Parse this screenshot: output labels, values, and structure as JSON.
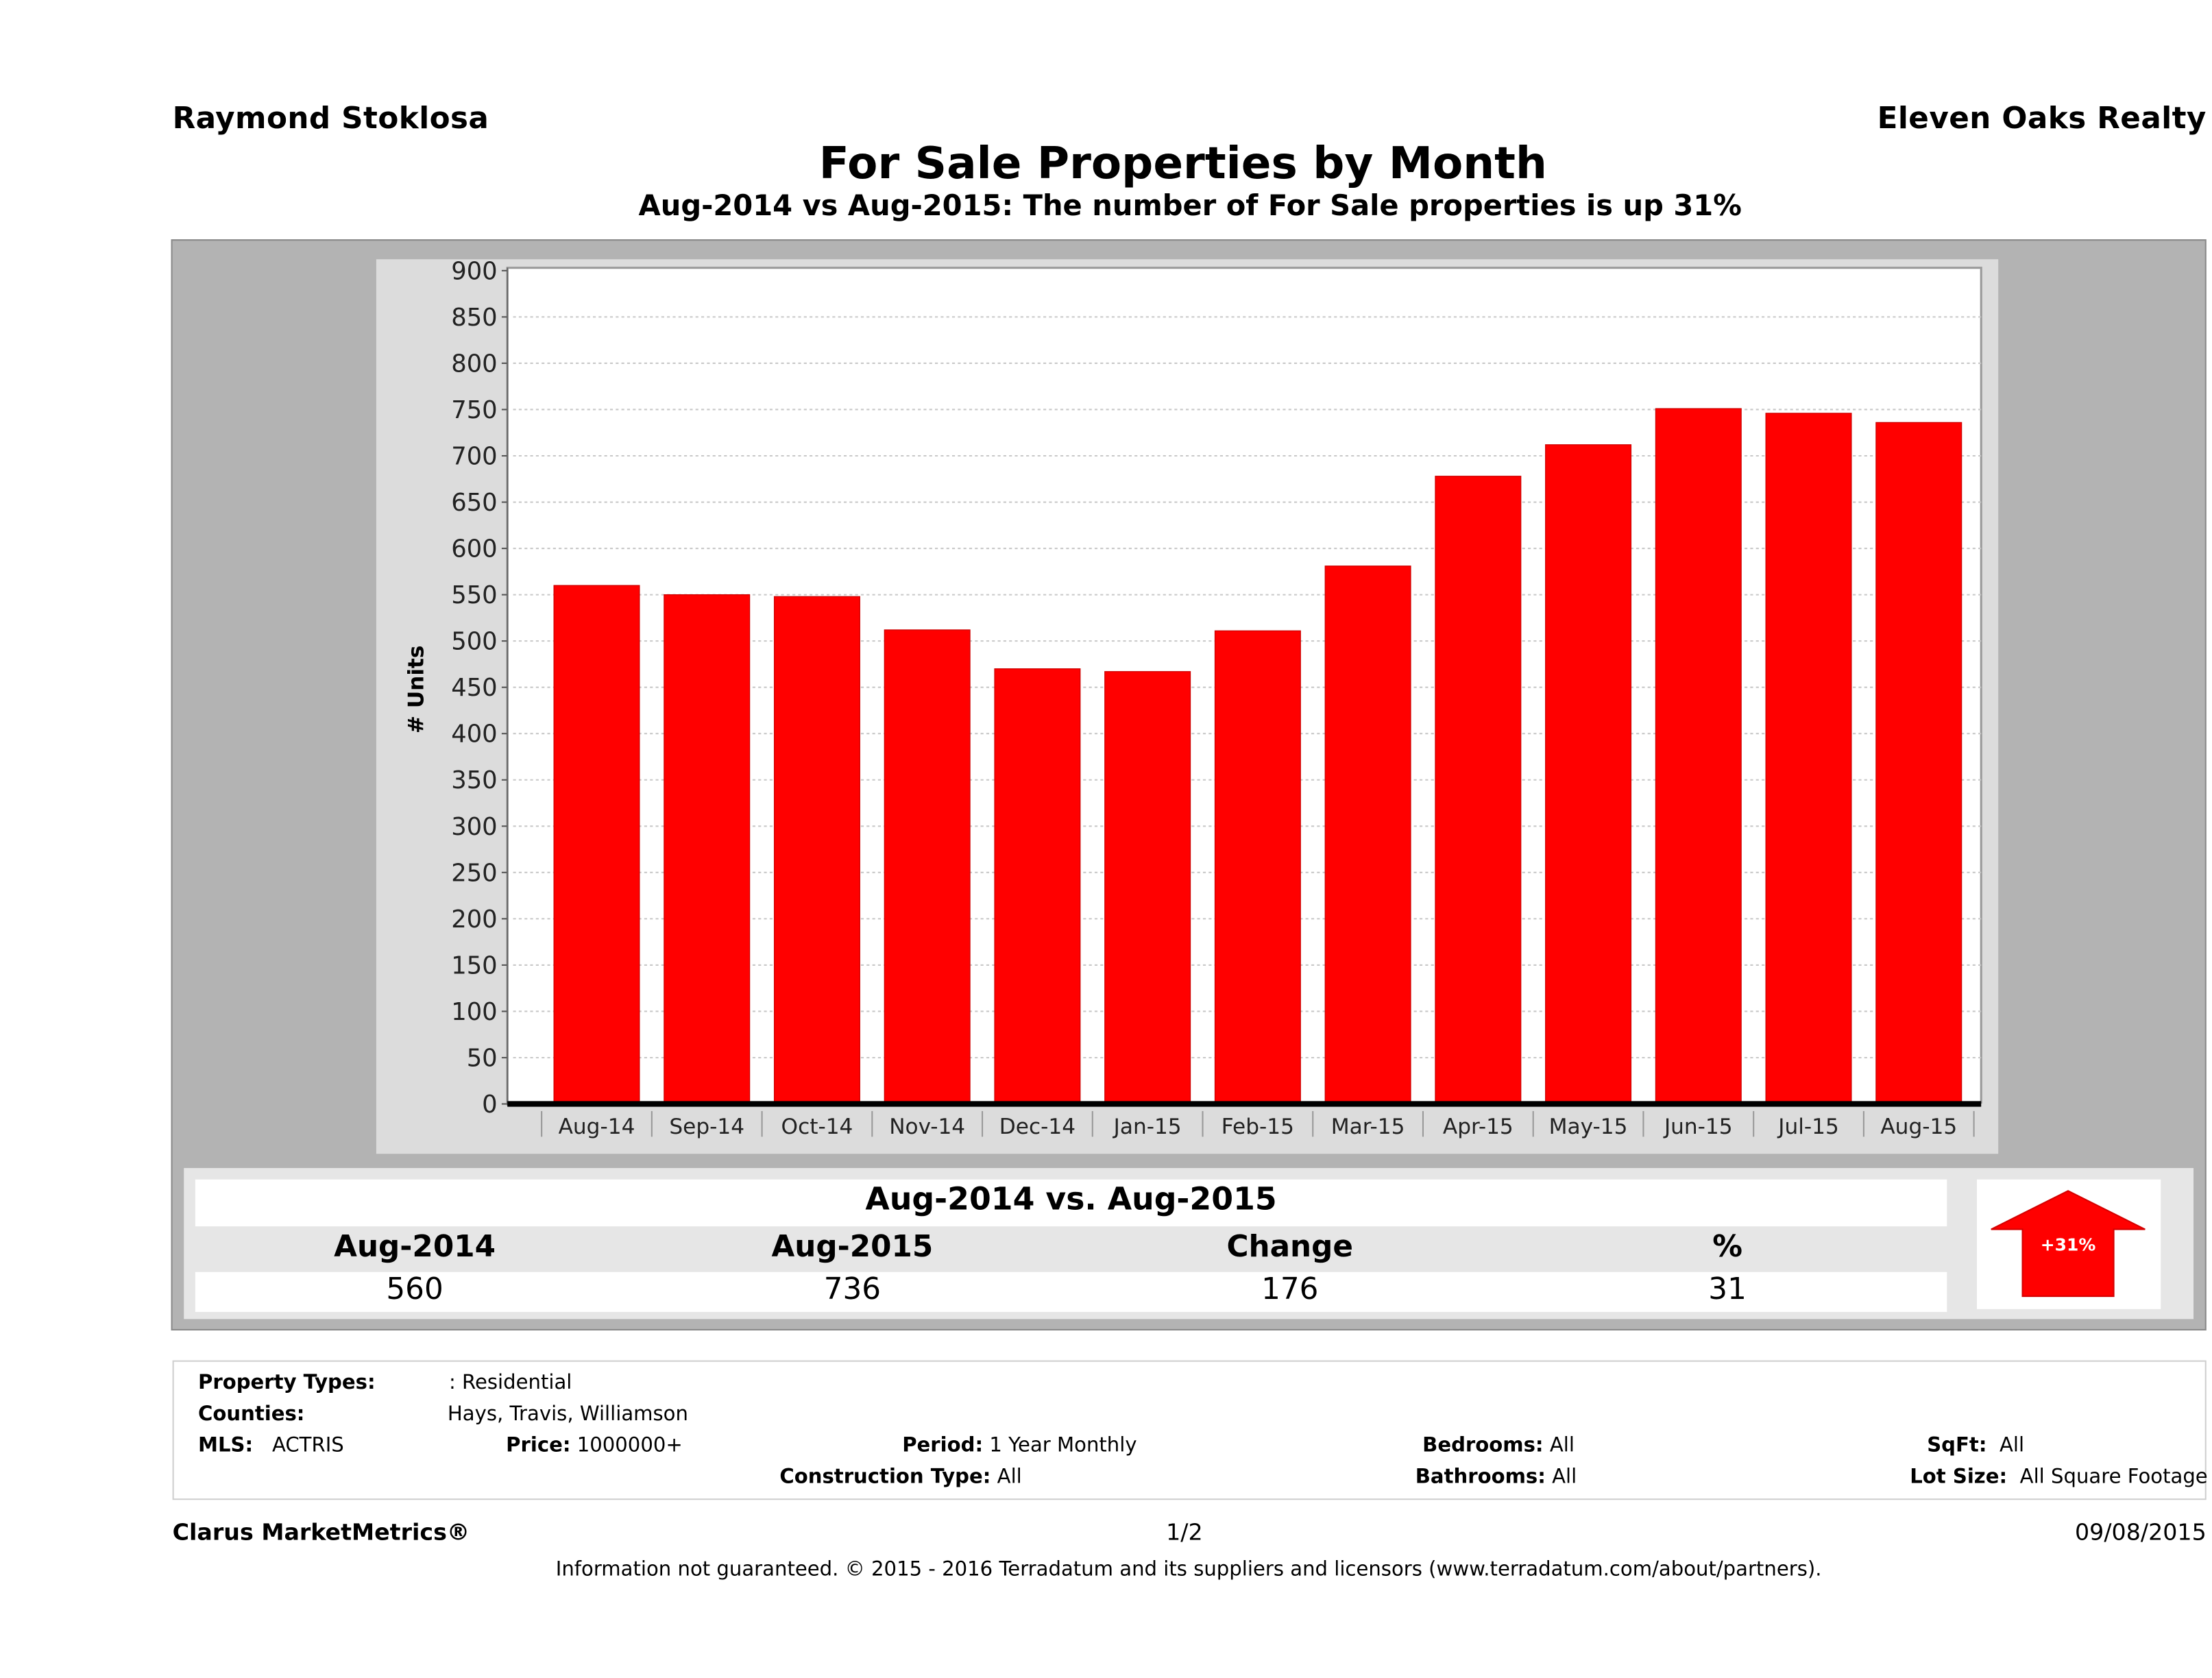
{
  "header": {
    "agent_name": "Raymond Stoklosa",
    "brokerage": "Eleven Oaks Realty",
    "title": "For Sale Properties by Month",
    "subtitle": "Aug-2014 vs Aug-2015: The number of For Sale  properties is up 31%"
  },
  "colors": {
    "bar": "#ff0000",
    "panel_bg": "#b3b3b3",
    "chart_bg": "#dcdcdc",
    "arrow": "#ff0000"
  },
  "chart_data": {
    "type": "bar",
    "title": "For Sale Properties by Month",
    "xlabel": "",
    "ylabel": "# Units",
    "ylim": [
      0,
      900
    ],
    "yticks": [
      0,
      50,
      100,
      150,
      200,
      250,
      300,
      350,
      400,
      450,
      500,
      550,
      600,
      650,
      700,
      750,
      800,
      850,
      900
    ],
    "grid": true,
    "legend": "none",
    "categories": [
      "Aug-14",
      "Sep-14",
      "Oct-14",
      "Nov-14",
      "Dec-14",
      "Jan-15",
      "Feb-15",
      "Mar-15",
      "Apr-15",
      "May-15",
      "Jun-15",
      "Jul-15",
      "Aug-15"
    ],
    "series": [
      {
        "name": "For Sale Properties",
        "values": [
          560,
          550,
          548,
          512,
          470,
          467,
          511,
          581,
          678,
          712,
          751,
          746,
          736
        ]
      }
    ]
  },
  "stats": {
    "title": "Aug-2014 vs. Aug-2015",
    "headers": [
      "Aug-2014",
      "Aug-2015",
      "Change",
      "%"
    ],
    "values": [
      "560",
      "736",
      "176",
      "31"
    ],
    "badge": "+31%"
  },
  "criteria": {
    "property_types_label": "Property Types:",
    "property_types_value": ": Residential",
    "counties_label": "Counties:",
    "counties_value": "Hays, Travis, Williamson",
    "mls_label": "MLS:",
    "mls_value": "ACTRIS",
    "price_label": "Price:",
    "price_value": "1000000+",
    "period_label": "Period:",
    "period_value": "1 Year Monthly",
    "construction_label": "Construction Type:",
    "construction_value": "All",
    "bedrooms_label": "Bedrooms:",
    "bedrooms_value": "All",
    "bathrooms_label": "Bathrooms:",
    "bathrooms_value": "All",
    "sqft_label": "SqFt:",
    "sqft_value": "All",
    "lot_label": "Lot Size:",
    "lot_value": "All Square Footage"
  },
  "footer": {
    "brand": "Clarus MarketMetrics®",
    "page": "1/2",
    "date": "09/08/2015",
    "disclaimer": "Information not guaranteed. © 2015 - 2016 Terradatum and its suppliers and licensors (www.terradatum.com/about/partners)."
  }
}
